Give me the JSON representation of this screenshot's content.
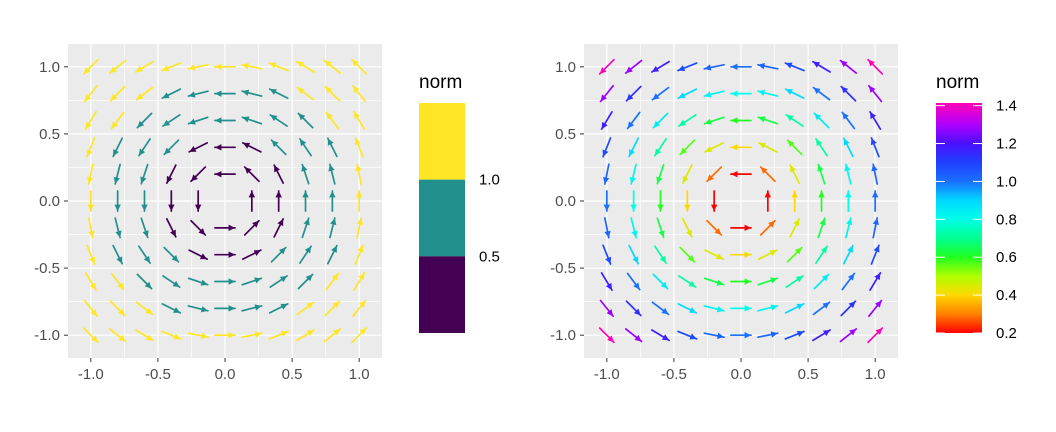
{
  "chart_data": [
    {
      "type": "quiver",
      "field": "u = -y, v = x (counter-clockwise rotation)",
      "x": [
        -1.0,
        -0.8,
        -0.6,
        -0.4,
        -0.2,
        0.0,
        0.2,
        0.4,
        0.6,
        0.8,
        1.0
      ],
      "y": [
        -1.0,
        -0.8,
        -0.6,
        -0.4,
        -0.2,
        0.0,
        0.2,
        0.4,
        0.6,
        0.8,
        1.0
      ],
      "xlim": [
        -1.17,
        1.17
      ],
      "ylim": [
        -1.17,
        1.17
      ],
      "x_ticks": [
        -1.0,
        -0.5,
        0.0,
        0.5,
        1.0
      ],
      "y_ticks": [
        -1.0,
        -0.5,
        0.0,
        0.5,
        1.0
      ],
      "x_tick_labels": [
        "-1.0",
        "-0.5",
        "0.0",
        "0.5",
        "1.0"
      ],
      "y_tick_labels": [
        "-1.0",
        "-0.5",
        "0.0",
        "0.5",
        "1.0"
      ],
      "color_by": "norm",
      "panel_background": "#ebebeb",
      "grid": true,
      "legend": {
        "title": "norm",
        "kind": "binned",
        "bins": [
          {
            "max": 0.5,
            "color": "#440154"
          },
          {
            "min": 0.5,
            "max": 1.0,
            "color": "#21908c"
          },
          {
            "min": 1.0,
            "color": "#fde725"
          }
        ],
        "labels": [
          "1.0",
          "0.5"
        ],
        "label_values": [
          1.0,
          0.5
        ],
        "placement": "right"
      }
    },
    {
      "type": "quiver",
      "field": "u = -y, v = x (counter-clockwise rotation)",
      "x": [
        -1.0,
        -0.8,
        -0.6,
        -0.4,
        -0.2,
        0.0,
        0.2,
        0.4,
        0.6,
        0.8,
        1.0
      ],
      "y": [
        -1.0,
        -0.8,
        -0.6,
        -0.4,
        -0.2,
        0.0,
        0.2,
        0.4,
        0.6,
        0.8,
        1.0
      ],
      "xlim": [
        -1.17,
        1.17
      ],
      "ylim": [
        -1.17,
        1.17
      ],
      "x_ticks": [
        -1.0,
        -0.5,
        0.0,
        0.5,
        1.0
      ],
      "y_ticks": [
        -1.0,
        -0.5,
        0.0,
        0.5,
        1.0
      ],
      "x_tick_labels": [
        "-1.0",
        "-0.5",
        "0.0",
        "0.5",
        "1.0"
      ],
      "y_tick_labels": [
        "-1.0",
        "-0.5",
        "0.0",
        "0.5",
        "1.0"
      ],
      "color_by": "norm",
      "panel_background": "#ebebeb",
      "grid": true,
      "legend": {
        "title": "norm",
        "kind": "continuous",
        "palette": "rainbow",
        "range": [
          0.2,
          1.414
        ],
        "labels": [
          "1.4",
          "1.2",
          "1.0",
          "0.8",
          "0.6",
          "0.4",
          "0.2"
        ],
        "label_values": [
          1.4,
          1.2,
          1.0,
          0.8,
          0.6,
          0.4,
          0.2
        ],
        "placement": "right"
      }
    }
  ]
}
